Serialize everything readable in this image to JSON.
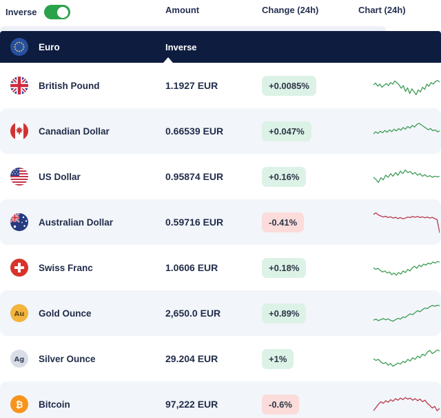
{
  "header": {
    "inverse_label": "Inverse",
    "inverse_on": true,
    "columns": {
      "amount": "Amount",
      "change": "Change (24h)",
      "chart": "Chart (24h)"
    }
  },
  "base_row": {
    "name": "Euro",
    "icon": "flag-eu",
    "tab_label": "Inverse"
  },
  "colors": {
    "navy_bar": "#0e1c40",
    "toggle_on": "#2aa24a",
    "badge_up_bg": "#dcf2e6",
    "badge_down_bg": "#fbdcda",
    "spark_up": "#3c9b53",
    "spark_down": "#b8394c",
    "stripe_bg": "#f2f5f9"
  },
  "rows": [
    {
      "name": "British Pound",
      "icon": "flag-gb",
      "amount": "1.1927 EUR",
      "change": "+0.0085%",
      "direction": "up",
      "spark": [
        55,
        62,
        50,
        58,
        46,
        54,
        60,
        52,
        64,
        58,
        70,
        63,
        55,
        42,
        52,
        30,
        44,
        22,
        40,
        30,
        18,
        36,
        28,
        46,
        38,
        58,
        50,
        64,
        58,
        68,
        72,
        66
      ]
    },
    {
      "name": "Canadian Dollar",
      "icon": "flag-ca",
      "amount": "0.66539 EUR",
      "change": "+0.047%",
      "direction": "up",
      "spark": [
        42,
        50,
        44,
        52,
        46,
        55,
        48,
        57,
        50,
        60,
        53,
        62,
        56,
        66,
        60,
        70,
        64,
        74,
        68,
        78,
        82,
        76,
        70,
        64,
        58,
        62,
        54,
        57,
        50,
        53
      ]
    },
    {
      "name": "US Dollar",
      "icon": "flag-us",
      "amount": "0.95874 EUR",
      "change": "+0.16%",
      "direction": "up",
      "spark": [
        50,
        42,
        30,
        48,
        40,
        58,
        50,
        64,
        54,
        68,
        58,
        74,
        64,
        78,
        68,
        72,
        62,
        68,
        58,
        64,
        54,
        60,
        52,
        56,
        50,
        54,
        52,
        53
      ]
    },
    {
      "name": "Australian Dollar",
      "icon": "flag-au",
      "amount": "0.59716 EUR",
      "change": "-0.41%",
      "direction": "down",
      "spark": [
        82,
        88,
        80,
        76,
        72,
        75,
        70,
        73,
        68,
        71,
        66,
        70,
        65,
        68,
        72,
        70,
        74,
        71,
        74,
        70,
        73,
        69,
        72,
        68,
        71,
        66,
        62,
        12
      ]
    },
    {
      "name": "Swiss Franc",
      "icon": "flag-ch",
      "amount": "1.0606 EUR",
      "change": "+0.18%",
      "direction": "up",
      "spark": [
        52,
        46,
        50,
        42,
        36,
        40,
        32,
        36,
        26,
        32,
        24,
        34,
        28,
        40,
        34,
        46,
        40,
        52,
        58,
        50,
        62,
        56,
        66,
        62,
        70,
        66,
        74,
        70,
        76,
        74
      ]
    },
    {
      "name": "Gold Ounce",
      "icon": "icon-gold",
      "amount": "2,650.0 EUR",
      "change": "+0.89%",
      "direction": "up",
      "spark": [
        26,
        30,
        24,
        28,
        32,
        27,
        31,
        25,
        22,
        28,
        33,
        30,
        38,
        36,
        44,
        50,
        47,
        55,
        62,
        58,
        66,
        72,
        70,
        77,
        82,
        79,
        83,
        81
      ]
    },
    {
      "name": "Silver Ounce",
      "icon": "icon-silver",
      "amount": "29.204 EUR",
      "change": "+1%",
      "direction": "up",
      "spark": [
        52,
        46,
        50,
        40,
        34,
        38,
        28,
        34,
        24,
        30,
        36,
        32,
        42,
        38,
        50,
        44,
        56,
        50,
        62,
        56,
        70,
        64,
        78,
        84,
        72,
        78,
        86,
        82
      ]
    },
    {
      "name": "Bitcoin",
      "icon": "icon-btc",
      "amount": "97,222 EUR",
      "change": "-0.6%",
      "direction": "down",
      "spark": [
        28,
        40,
        52,
        62,
        56,
        66,
        60,
        70,
        64,
        74,
        68,
        76,
        70,
        78,
        72,
        76,
        68,
        74,
        66,
        72,
        62,
        68,
        56,
        48,
        38,
        44,
        28,
        36
      ]
    }
  ]
}
